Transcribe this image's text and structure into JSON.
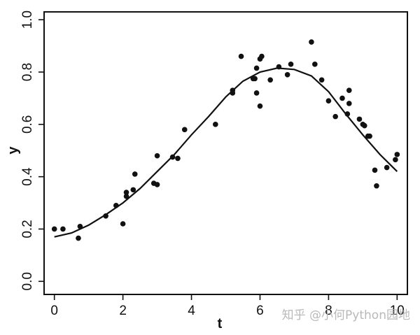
{
  "chart_data": {
    "type": "scatter",
    "title": "",
    "xlabel": "t",
    "ylabel": "y",
    "xlim": [
      -0.3,
      10.3
    ],
    "ylim": [
      -0.05,
      1.03
    ],
    "xticks": [
      "0",
      "2",
      "4",
      "6",
      "8",
      "10"
    ],
    "yticks": [
      "0.0",
      "0.2",
      "0.4",
      "0.6",
      "0.8",
      "1.0"
    ],
    "grid": false,
    "series": [
      {
        "kind": "points",
        "points": [
          [
            0.0,
            0.2
          ],
          [
            0.25,
            0.2
          ],
          [
            0.7,
            0.165
          ],
          [
            0.75,
            0.21
          ],
          [
            1.5,
            0.25
          ],
          [
            1.8,
            0.29
          ],
          [
            2.0,
            0.22
          ],
          [
            2.1,
            0.325
          ],
          [
            2.1,
            0.34
          ],
          [
            2.3,
            0.35
          ],
          [
            2.35,
            0.41
          ],
          [
            2.9,
            0.375
          ],
          [
            3.0,
            0.37
          ],
          [
            3.0,
            0.48
          ],
          [
            3.45,
            0.475
          ],
          [
            3.6,
            0.47
          ],
          [
            3.8,
            0.58
          ],
          [
            4.7,
            0.6
          ],
          [
            5.2,
            0.73
          ],
          [
            5.2,
            0.72
          ],
          [
            5.45,
            0.86
          ],
          [
            5.8,
            0.775
          ],
          [
            5.85,
            0.775
          ],
          [
            5.9,
            0.815
          ],
          [
            5.9,
            0.72
          ],
          [
            6.0,
            0.67
          ],
          [
            6.0,
            0.85
          ],
          [
            6.05,
            0.86
          ],
          [
            6.3,
            0.77
          ],
          [
            6.55,
            0.82
          ],
          [
            6.8,
            0.79
          ],
          [
            6.9,
            0.83
          ],
          [
            7.5,
            0.915
          ],
          [
            7.6,
            0.83
          ],
          [
            7.8,
            0.77
          ],
          [
            8.0,
            0.69
          ],
          [
            8.2,
            0.63
          ],
          [
            8.4,
            0.7
          ],
          [
            8.55,
            0.64
          ],
          [
            8.6,
            0.73
          ],
          [
            8.6,
            0.68
          ],
          [
            8.9,
            0.62
          ],
          [
            9.0,
            0.6
          ],
          [
            9.05,
            0.595
          ],
          [
            9.15,
            0.555
          ],
          [
            9.2,
            0.555
          ],
          [
            9.35,
            0.425
          ],
          [
            9.4,
            0.365
          ],
          [
            9.7,
            0.435
          ],
          [
            9.95,
            0.465
          ],
          [
            10.0,
            0.485
          ]
        ]
      },
      {
        "kind": "line",
        "points": [
          [
            0.0,
            0.17
          ],
          [
            0.5,
            0.185
          ],
          [
            1.0,
            0.215
          ],
          [
            1.5,
            0.255
          ],
          [
            2.0,
            0.3
          ],
          [
            2.5,
            0.355
          ],
          [
            3.0,
            0.42
          ],
          [
            3.5,
            0.485
          ],
          [
            4.0,
            0.56
          ],
          [
            4.5,
            0.63
          ],
          [
            5.0,
            0.705
          ],
          [
            5.5,
            0.765
          ],
          [
            6.0,
            0.8
          ],
          [
            6.5,
            0.815
          ],
          [
            7.0,
            0.81
          ],
          [
            7.5,
            0.785
          ],
          [
            8.0,
            0.725
          ],
          [
            8.5,
            0.64
          ],
          [
            9.0,
            0.56
          ],
          [
            9.5,
            0.485
          ],
          [
            10.0,
            0.42
          ]
        ]
      }
    ]
  },
  "watermark": {
    "text": "知乎 @小何Python园地",
    "color": "#b9b9b9"
  }
}
